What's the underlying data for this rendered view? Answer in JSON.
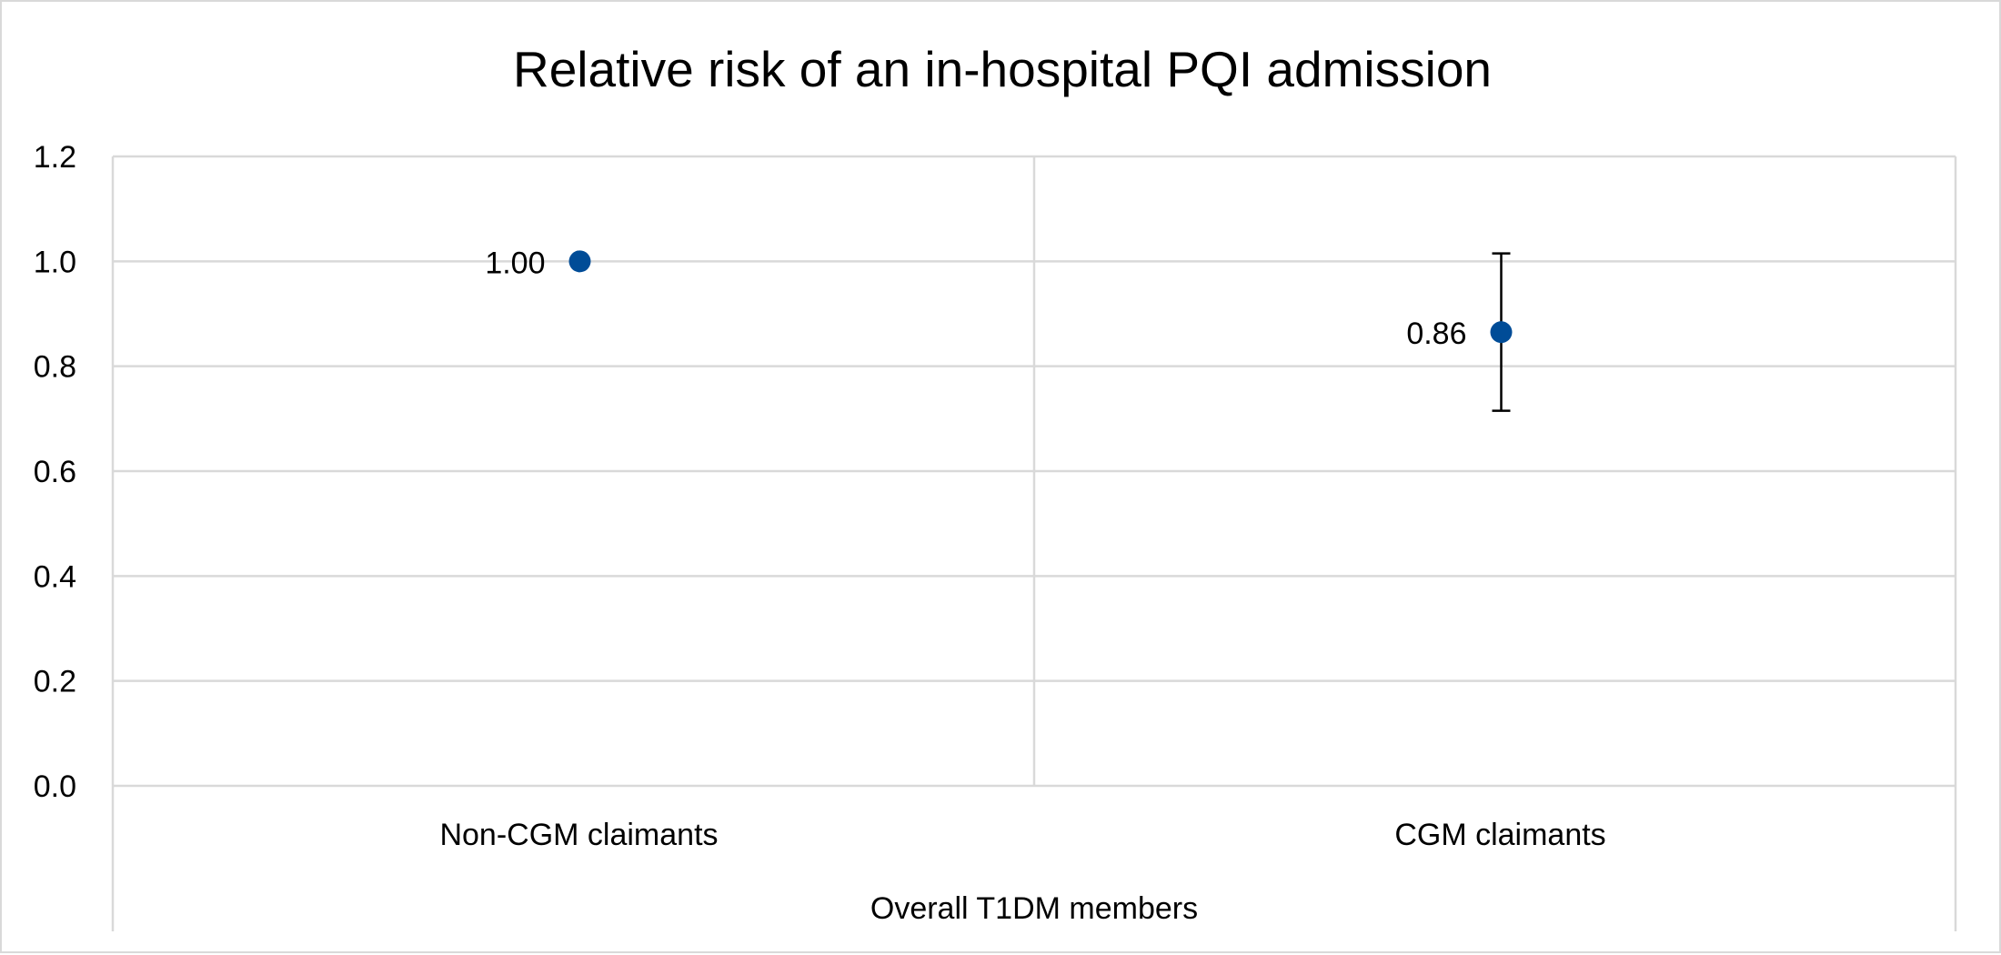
{
  "chart_data": {
    "type": "scatter",
    "title": "Relative risk of an in-hospital PQI admission",
    "xlabel": "Overall T1DM members",
    "ylabel": "",
    "categories": [
      "Non-CGM claimants",
      "CGM claimants"
    ],
    "series": [
      {
        "values": [
          1.0,
          0.865
        ],
        "data_labels": [
          "1.00",
          "0.86"
        ],
        "error_low": [
          null,
          0.715
        ],
        "error_high": [
          null,
          1.015
        ],
        "color": "#004c97"
      }
    ],
    "ylim": [
      0,
      1.2
    ],
    "y_ticks": [
      "0.0",
      "0.2",
      "0.4",
      "0.6",
      "0.8",
      "1.0",
      "1.2"
    ],
    "grid": true,
    "legend": "none"
  }
}
